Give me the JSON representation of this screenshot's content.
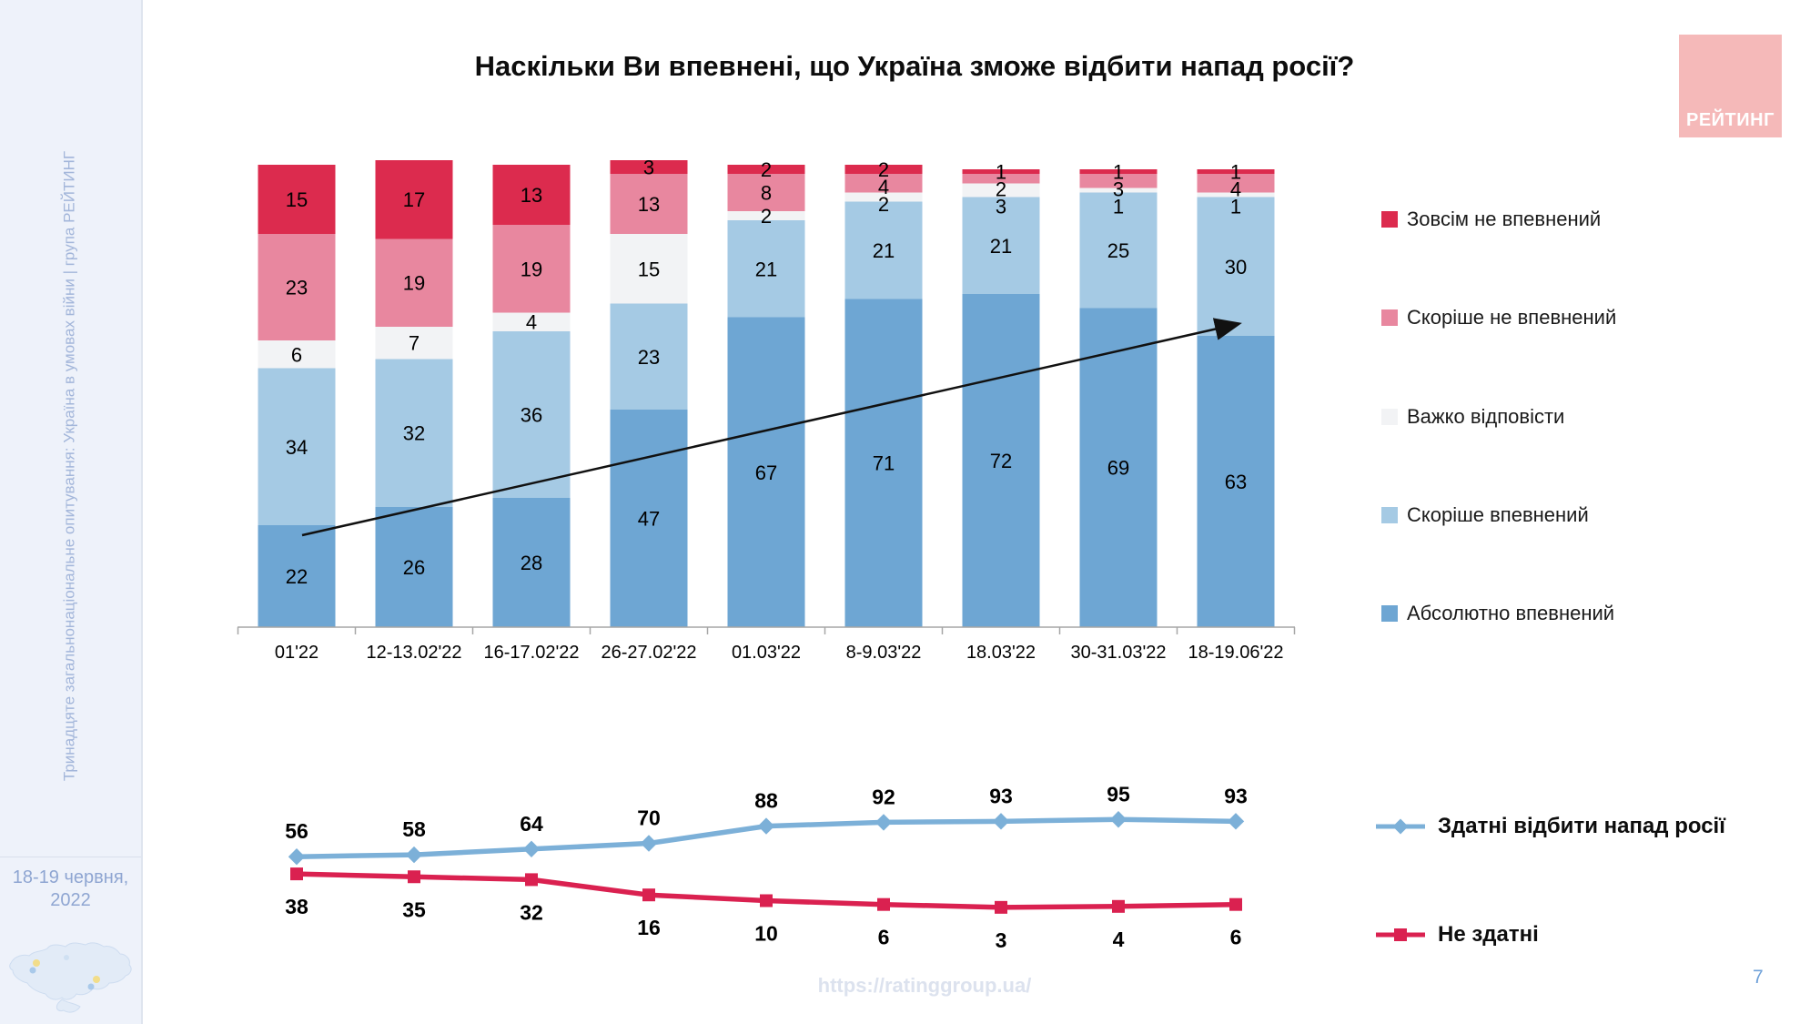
{
  "sidebar": {
    "vertical_text": "Тринадцяте загальнонаціональне опитування: Україна в умовах війни | група РЕЙТИНГ",
    "date_line1": "18-19 червня,",
    "date_line2": "2022"
  },
  "header": {
    "logo_text": "РЕЙТИНГ"
  },
  "footer": {
    "url": "https://ratinggroup.ua/",
    "page_number": "7"
  },
  "colors": {
    "absolutely_confident": "#6ea6d3",
    "rather_confident": "#a5cae4",
    "hard_to_say": "#f2f3f5",
    "rather_not_confident": "#e8879f",
    "not_confident_at_all": "#dc2b4e",
    "line_able": "#7cb0d8",
    "line_not_able": "#da2150",
    "sidebar_bg": "#eef2fa",
    "logo_bg": "#f5b9b9"
  },
  "chart_data": [
    {
      "type": "bar",
      "stacked": true,
      "title": "Наскільки Ви впевнені, що Україна зможе відбити напад росії?",
      "categories": [
        "01'22",
        "12-13.02'22",
        "16-17.02'22",
        "26-27.02'22",
        "01.03'22",
        "8-9.03'22",
        "18.03'22",
        "30-31.03'22",
        "18-19.06'22"
      ],
      "series": [
        {
          "name": "Абсолютно впевнений",
          "color": "#6ea6d3",
          "values": [
            22,
            26,
            28,
            47,
            67,
            71,
            72,
            69,
            63
          ]
        },
        {
          "name": "Скоріше впевнений",
          "color": "#a5cae4",
          "values": [
            34,
            32,
            36,
            23,
            21,
            21,
            21,
            25,
            30
          ]
        },
        {
          "name": "Важко відповісти",
          "color": "#f2f3f5",
          "values": [
            6,
            7,
            4,
            15,
            2,
            2,
            3,
            1,
            1
          ]
        },
        {
          "name": "Скоріше не впевнений",
          "color": "#e8879f",
          "values": [
            23,
            19,
            19,
            13,
            8,
            4,
            2,
            3,
            4
          ]
        },
        {
          "name": "Зовсім не впевнений",
          "color": "#dc2b4e",
          "values": [
            15,
            17,
            13,
            3,
            2,
            2,
            1,
            1,
            1
          ]
        }
      ],
      "ylim": [
        0,
        100
      ],
      "grid": false,
      "legend_position": "right",
      "trend_arrow": true
    },
    {
      "type": "line",
      "categories": [
        "01'22",
        "12-13.02'22",
        "16-17.02'22",
        "26-27.02'22",
        "01.03'22",
        "8-9.03'22",
        "18.03'22",
        "30-31.03'22",
        "18-19.06'22"
      ],
      "series": [
        {
          "name": "Здатні відбити напад росії",
          "color": "#7cb0d8",
          "marker": "diamond",
          "values": [
            56,
            58,
            64,
            70,
            88,
            92,
            93,
            95,
            93
          ]
        },
        {
          "name": "Не здатні",
          "color": "#da2150",
          "marker": "square",
          "values": [
            38,
            35,
            32,
            16,
            10,
            6,
            3,
            4,
            6
          ]
        }
      ],
      "grid": false,
      "legend_position": "right"
    }
  ]
}
